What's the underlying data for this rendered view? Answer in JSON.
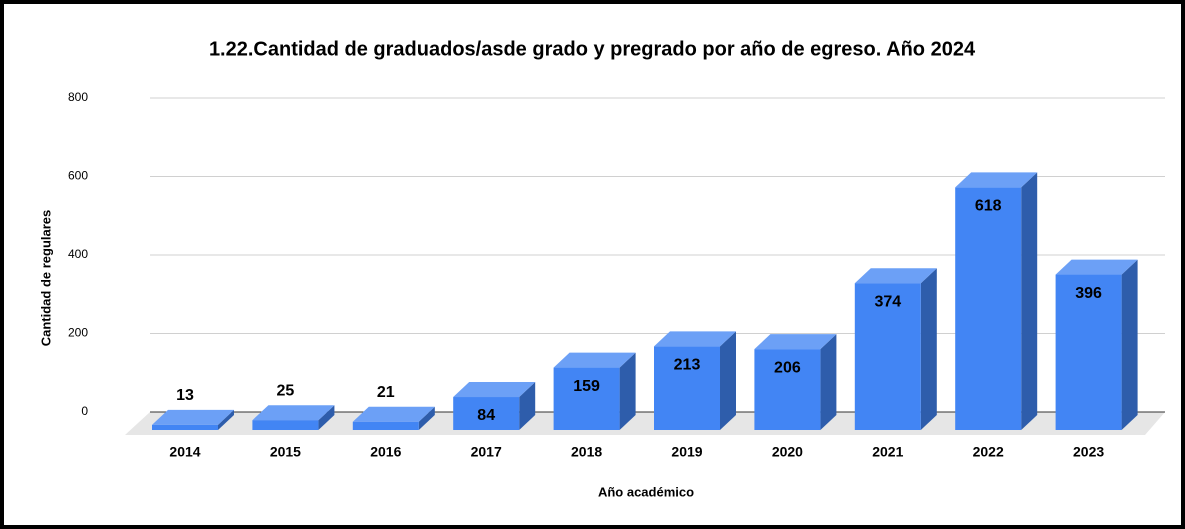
{
  "chart_data": {
    "type": "bar3d",
    "title": "1.22.Cantidad de graduados/asde grado y pregrado por año de egreso. Año 2024",
    "x_label": "Año académico",
    "y_label": "Cantidad de regulares",
    "categories": [
      "2014",
      "2015",
      "2016",
      "2017",
      "2018",
      "2019",
      "2020",
      "2021",
      "2022",
      "2023"
    ],
    "values": [
      13,
      25,
      21,
      84,
      159,
      213,
      206,
      374,
      618,
      396
    ],
    "color": "#4285f4",
    "ylim": [
      0,
      800
    ],
    "yticks": [
      0,
      200,
      400,
      600,
      800
    ],
    "grid": true
  }
}
